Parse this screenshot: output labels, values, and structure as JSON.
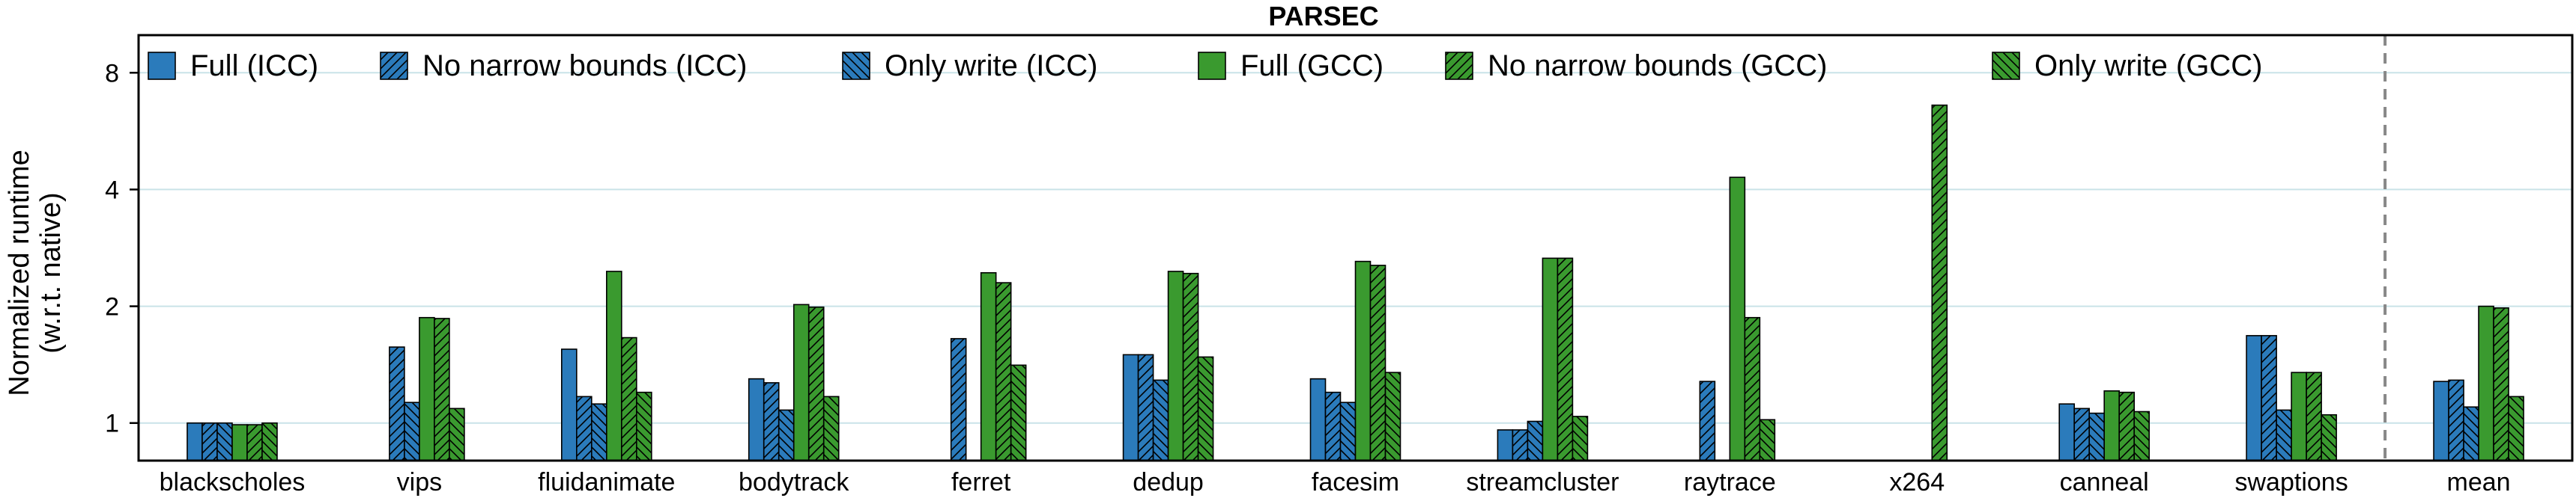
{
  "chart_data": {
    "type": "bar",
    "title": "PARSEC",
    "ylabel_line1": "Normalized runtime",
    "ylabel_line2": "(w.r.t. native)",
    "xlabel": "",
    "y_scale": "log2",
    "ylim": [
      0.8,
      10
    ],
    "y_ticks": [
      1,
      2,
      4,
      8
    ],
    "y_tick_labels": [
      "1",
      "2",
      "4",
      "8"
    ],
    "grid": "horizontal",
    "legend_position": "top",
    "categories": [
      "blackscholes",
      "vips",
      "fluidanimate",
      "bodytrack",
      "ferret",
      "dedup",
      "facesim",
      "streamcluster",
      "raytrace",
      "x264",
      "canneal",
      "swaptions",
      "mean"
    ],
    "separator_before": "mean",
    "colors": {
      "icc": "#2b7bbb",
      "gcc": "#3a9a2f",
      "edge": "#000000"
    },
    "series": [
      {
        "name": "Full (ICC)",
        "color": "#2b7bbb",
        "pattern": "none",
        "values": [
          1.0,
          null,
          1.55,
          1.3,
          null,
          1.5,
          1.3,
          0.96,
          null,
          null,
          1.12,
          1.68,
          1.28
        ]
      },
      {
        "name": "No narrow bounds (ICC)",
        "color": "#2b7bbb",
        "pattern": "diag-up",
        "values": [
          1.0,
          1.57,
          1.17,
          1.27,
          1.65,
          1.5,
          1.2,
          0.96,
          1.28,
          null,
          1.09,
          1.68,
          1.29
        ]
      },
      {
        "name": "Only write (ICC)",
        "color": "#2b7bbb",
        "pattern": "diag-down",
        "values": [
          1.0,
          1.13,
          1.12,
          1.08,
          null,
          1.29,
          1.13,
          1.01,
          null,
          null,
          1.06,
          1.08,
          1.1
        ]
      },
      {
        "name": "Full (GCC)",
        "color": "#3a9a2f",
        "pattern": "none",
        "values": [
          0.99,
          1.87,
          2.46,
          2.02,
          2.44,
          2.46,
          2.61,
          2.66,
          4.3,
          null,
          1.21,
          1.35,
          2.0
        ]
      },
      {
        "name": "No narrow bounds (GCC)",
        "color": "#3a9a2f",
        "pattern": "diag-up",
        "values": [
          0.99,
          1.86,
          1.66,
          1.99,
          2.3,
          2.43,
          2.55,
          2.66,
          1.87,
          6.6,
          1.2,
          1.35,
          1.98
        ]
      },
      {
        "name": "Only write (GCC)",
        "color": "#3a9a2f",
        "pattern": "diag-down",
        "values": [
          1.0,
          1.09,
          1.2,
          1.17,
          1.41,
          1.48,
          1.35,
          1.04,
          1.02,
          null,
          1.07,
          1.05,
          1.17
        ]
      }
    ]
  }
}
